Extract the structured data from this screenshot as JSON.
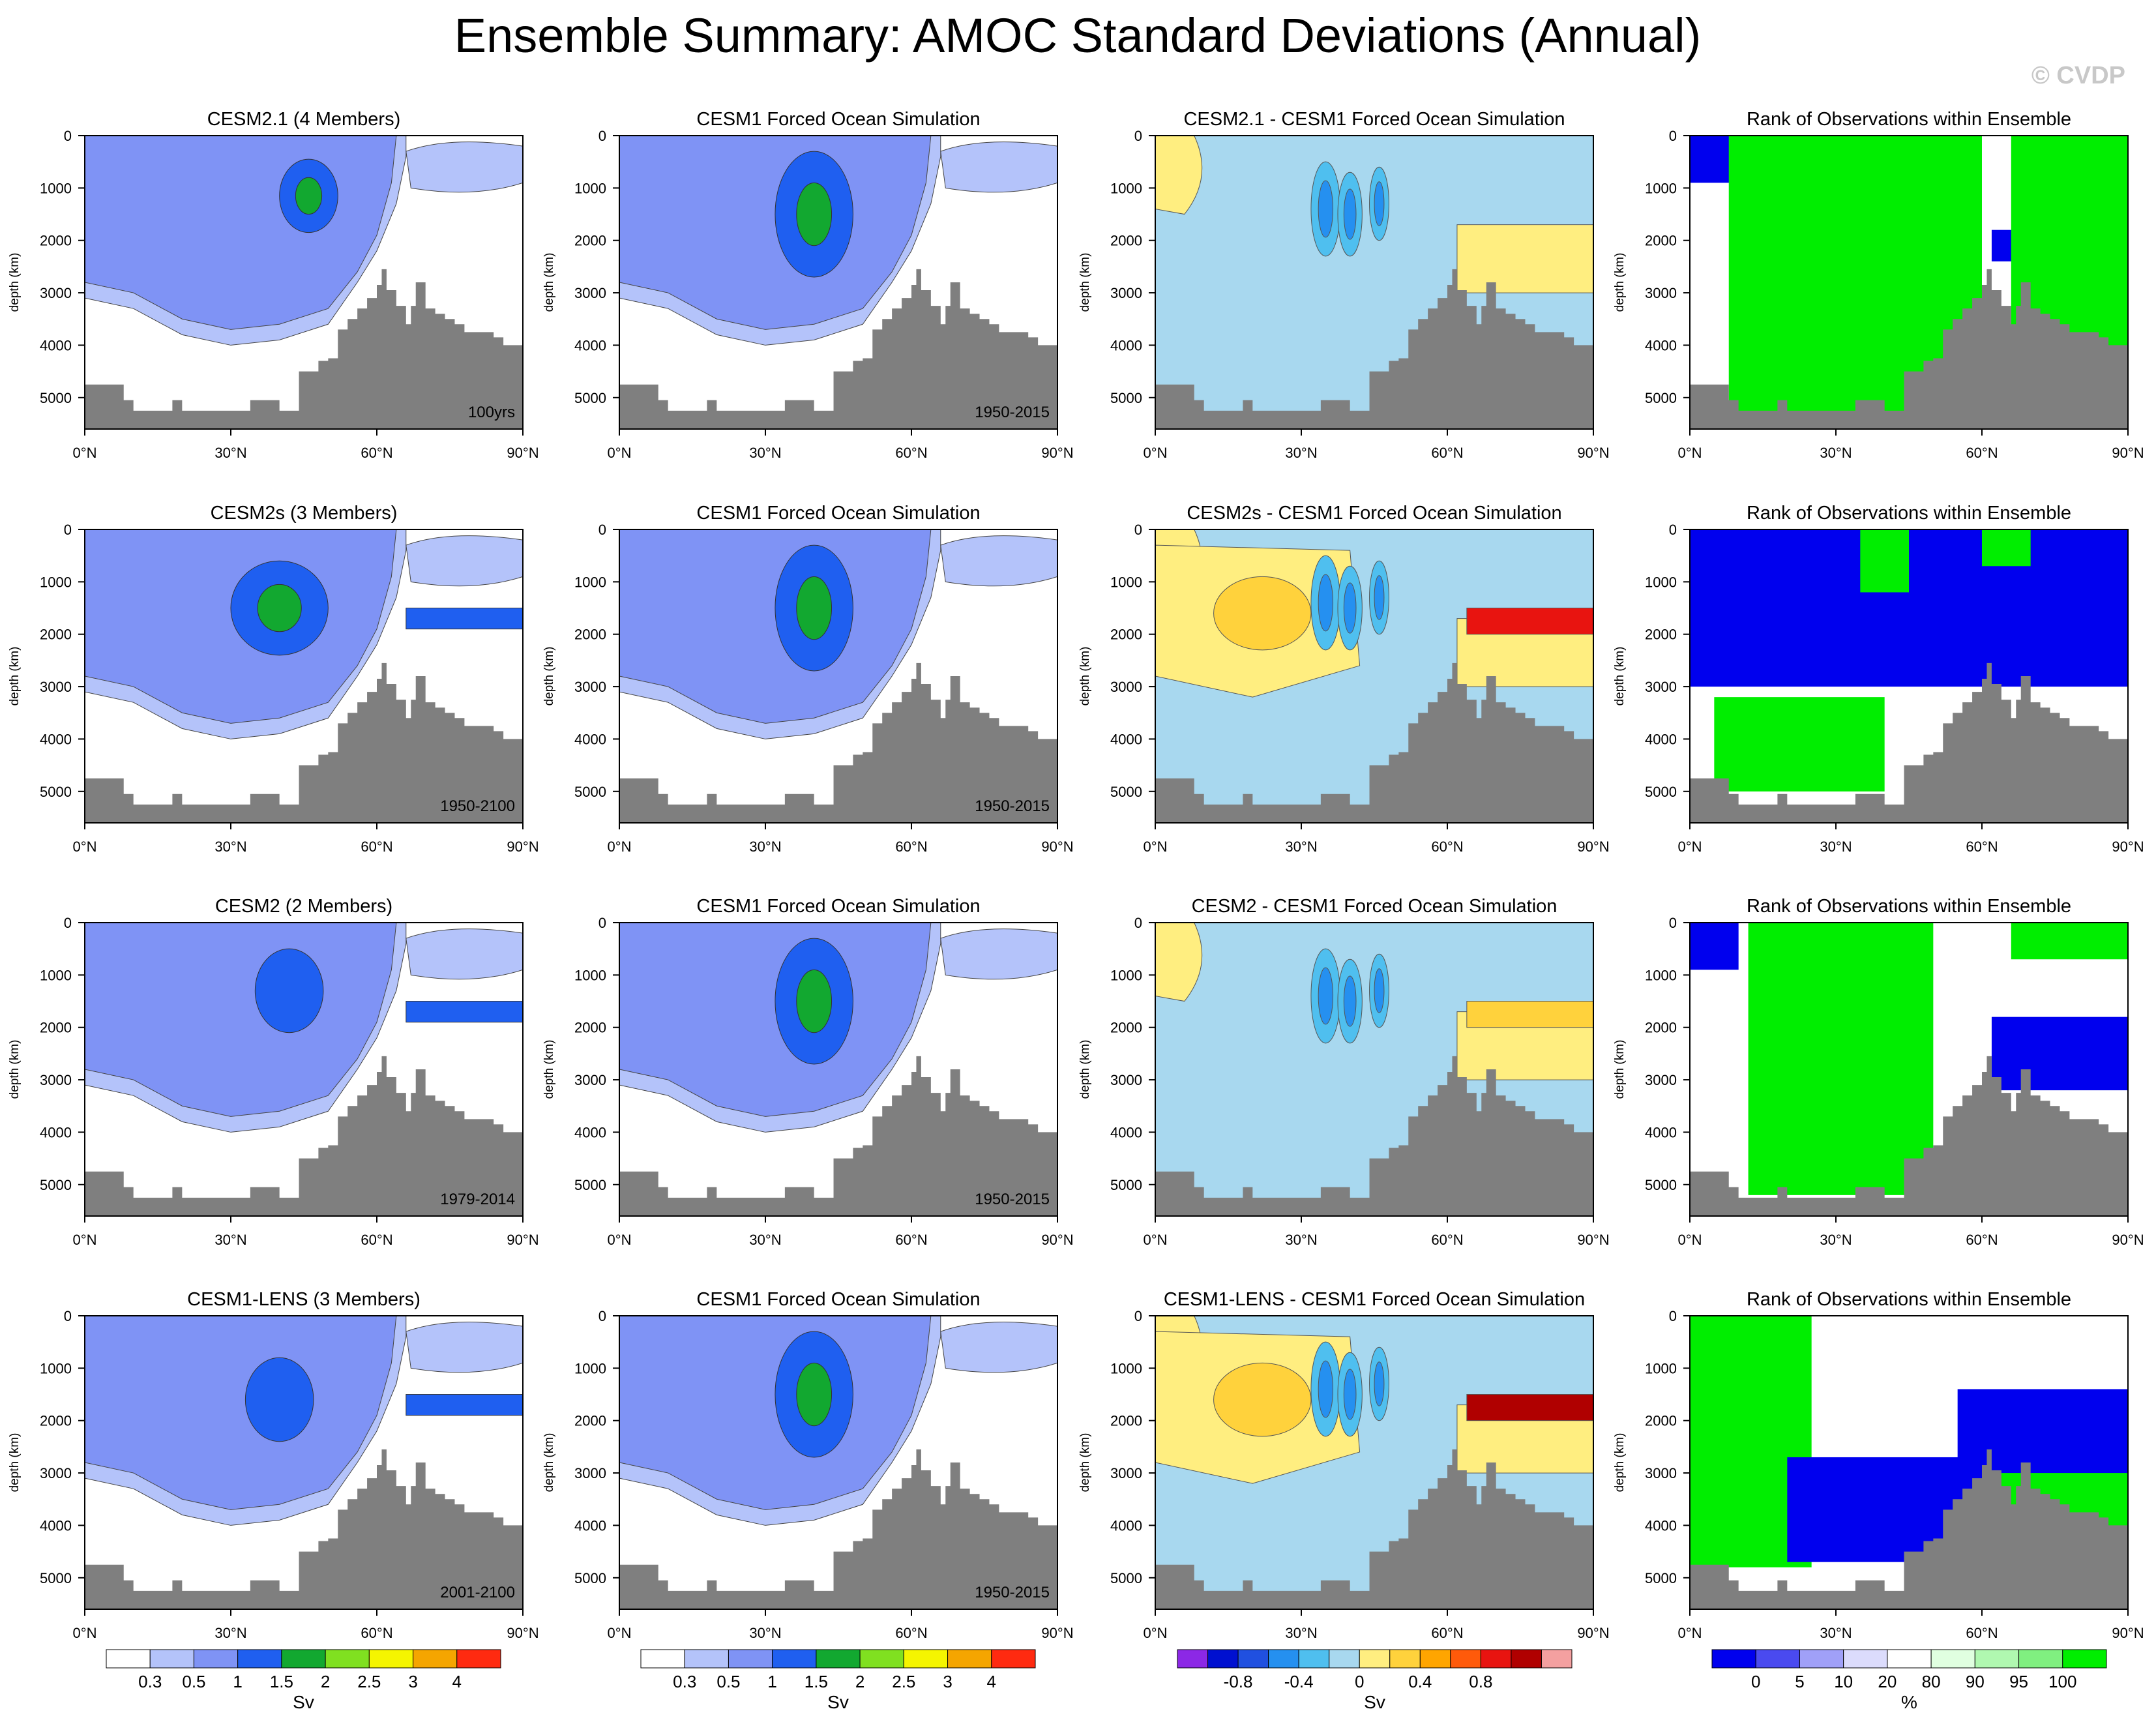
{
  "figure": {
    "title": "Ensemble Summary: AMOC Standard Deviations (Annual)",
    "watermark": "© CVDP"
  },
  "axes": {
    "ylabel": "depth (km)",
    "yticks": [
      "0",
      "1000",
      "2000",
      "3000",
      "4000",
      "5000"
    ],
    "xticks": [
      "0°N",
      "30°N",
      "60°N",
      "90°N"
    ]
  },
  "colors": {
    "land": "#7f7f7f",
    "sd_levels": [
      "#ffffff",
      "#b4c3fa",
      "#7f93f5",
      "#1f5ff0",
      "#12a830",
      "#80e020",
      "#f5f500",
      "#f5a500",
      "#ff2a10"
    ],
    "diff_levels": [
      "#8c28e6",
      "#0010d0",
      "#2050e0",
      "#2590f0",
      "#4fbfef",
      "#a8d8ef",
      "#ffee80",
      "#ffd23c",
      "#ffa500",
      "#ff5a0a",
      "#e81410",
      "#b00000",
      "#f4a0a0"
    ],
    "rank_levels": [
      "#0000ee",
      "#4a4af0",
      "#a0a0f8",
      "#dcdcfc",
      "#ffffff",
      "#e0ffe0",
      "#b0f8b0",
      "#80f080",
      "#00ee00"
    ]
  },
  "colorbars": [
    {
      "labels": [
        "0.3",
        "0.5",
        "1",
        "1.5",
        "2",
        "2.5",
        "3",
        "4"
      ],
      "unit": "Sv"
    },
    {
      "labels": [
        "0.3",
        "0.5",
        "1",
        "1.5",
        "2",
        "2.5",
        "3",
        "4"
      ],
      "unit": "Sv"
    },
    {
      "labels": [
        "-0.8",
        "-0.4",
        "0",
        "0.4",
        "0.8"
      ],
      "unit": "Sv"
    },
    {
      "labels": [
        "0",
        "5",
        "10",
        "20",
        "80",
        "90",
        "95",
        "100"
      ],
      "unit": "%"
    }
  ],
  "rows": [
    {
      "panels": [
        {
          "title": "CESM2.1 (4 Members)",
          "period": "100yrs"
        },
        {
          "title": "CESM1 Forced Ocean Simulation",
          "period": "1950-2015"
        },
        {
          "title": "CESM2.1 - CESM1 Forced Ocean Simulation",
          "period": ""
        },
        {
          "title": "Rank of Observations within Ensemble",
          "period": ""
        }
      ]
    },
    {
      "panels": [
        {
          "title": "CESM2s (3 Members)",
          "period": "1950-2100"
        },
        {
          "title": "CESM1 Forced Ocean Simulation",
          "period": "1950-2015"
        },
        {
          "title": "CESM2s - CESM1 Forced Ocean Simulation",
          "period": ""
        },
        {
          "title": "Rank of Observations within Ensemble",
          "period": ""
        }
      ]
    },
    {
      "panels": [
        {
          "title": "CESM2 (2 Members)",
          "period": "1979-2014"
        },
        {
          "title": "CESM1 Forced Ocean Simulation",
          "period": "1950-2015"
        },
        {
          "title": "CESM2 - CESM1 Forced Ocean Simulation",
          "period": ""
        },
        {
          "title": "Rank of Observations within Ensemble",
          "period": ""
        }
      ]
    },
    {
      "panels": [
        {
          "title": "CESM1-LENS (3 Members)",
          "period": "2001-2100"
        },
        {
          "title": "CESM1 Forced Ocean Simulation",
          "period": "1950-2015"
        },
        {
          "title": "CESM1-LENS - CESM1 Forced Ocean Simulation",
          "period": ""
        },
        {
          "title": "Rank of Observations within Ensemble",
          "period": ""
        }
      ]
    }
  ],
  "chart_data": {
    "type": "heatmap",
    "title": "Ensemble Summary: AMOC Standard Deviations (Annual)",
    "xlabel": "",
    "ylabel": "depth (km)",
    "xlim": [
      0,
      90
    ],
    "ylim": [
      5500,
      0
    ],
    "columns": [
      {
        "name": "model_std",
        "levels": [
          0.3,
          0.5,
          1,
          1.5,
          2,
          2.5,
          3,
          4
        ],
        "unit": "Sv"
      },
      {
        "name": "obs_std",
        "levels": [
          0.3,
          0.5,
          1,
          1.5,
          2,
          2.5,
          3,
          4
        ],
        "unit": "Sv"
      },
      {
        "name": "difference",
        "levels": [
          -0.8,
          -0.4,
          0,
          0.4,
          0.8
        ],
        "unit": "Sv"
      },
      {
        "name": "rank",
        "levels": [
          0,
          5,
          10,
          20,
          80,
          90,
          95,
          100
        ],
        "unit": "%"
      }
    ],
    "bathymetry": {
      "lat": [
        0,
        4,
        8,
        9,
        10,
        12,
        14,
        16,
        18,
        20,
        22,
        24,
        26,
        28,
        30,
        32,
        34,
        36,
        38,
        40,
        42,
        44,
        46,
        48,
        50,
        52,
        54,
        56,
        58,
        60,
        61,
        62,
        64,
        66,
        67,
        68,
        70,
        72,
        74,
        76,
        78,
        80,
        82,
        84,
        86,
        88,
        90
      ],
      "depth": [
        4750,
        4750,
        5050,
        5050,
        5250,
        5250,
        5250,
        5250,
        5050,
        5250,
        5250,
        5250,
        5250,
        5250,
        5250,
        5250,
        5050,
        5050,
        5050,
        5250,
        5250,
        4500,
        4500,
        4300,
        4250,
        3700,
        3500,
        3300,
        3100,
        2850,
        2550,
        2950,
        3250,
        3600,
        3250,
        2800,
        3300,
        3400,
        3500,
        3600,
        3750,
        3750,
        3750,
        3850,
        4000,
        4000,
        4000
      ]
    },
    "sd_field": [
      {
        "name": "outer_0.3",
        "level": 0.3,
        "lower_depth_profile": [
          [
            0,
            3100
          ],
          [
            10,
            3300
          ],
          [
            20,
            3800
          ],
          [
            30,
            4000
          ],
          [
            40,
            3900
          ],
          [
            50,
            3600
          ],
          [
            56,
            2800
          ],
          [
            60,
            2200
          ],
          [
            64,
            1300
          ],
          [
            66,
            400
          ]
        ]
      },
      {
        "name": "core_1",
        "level": 1,
        "center": [
          46,
          1150
        ],
        "radius": [
          6,
          650
        ]
      },
      {
        "name": "core_1.5",
        "level": 1.5,
        "center": [
          46,
          1150
        ],
        "radius": [
          3,
          400
        ]
      }
    ]
  }
}
